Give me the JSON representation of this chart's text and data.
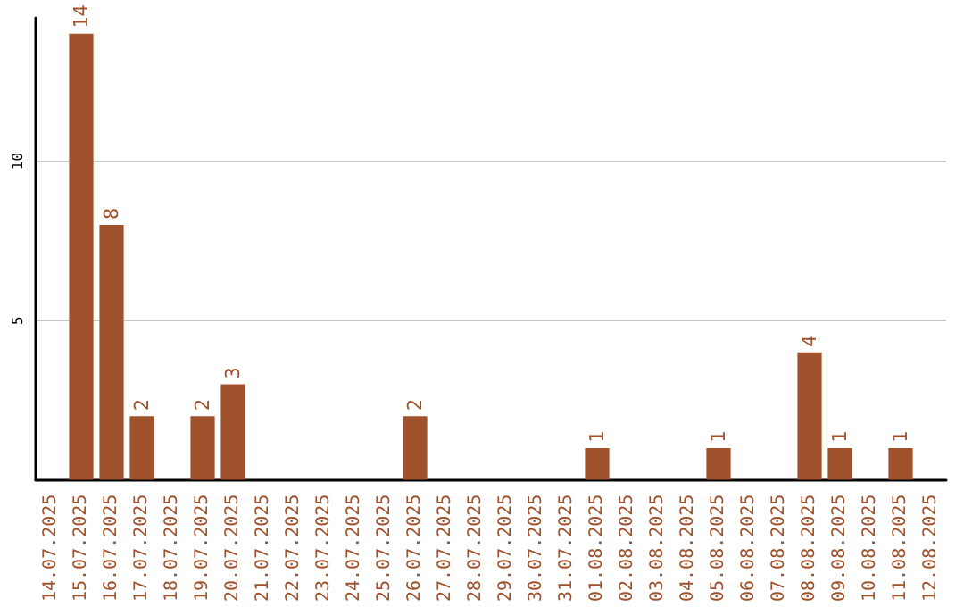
{
  "chart_data": {
    "type": "bar",
    "categories": [
      "14.07.2025",
      "15.07.2025",
      "16.07.2025",
      "17.07.2025",
      "18.07.2025",
      "19.07.2025",
      "20.07.2025",
      "21.07.2025",
      "22.07.2025",
      "23.07.2025",
      "24.07.2025",
      "25.07.2025",
      "26.07.2025",
      "27.07.2025",
      "28.07.2025",
      "29.07.2025",
      "30.07.2025",
      "31.07.2025",
      "01.08.2025",
      "02.08.2025",
      "03.08.2025",
      "04.08.2025",
      "05.08.2025",
      "06.08.2025",
      "07.08.2025",
      "08.08.2025",
      "09.08.2025",
      "10.08.2025",
      "11.08.2025",
      "12.08.2025"
    ],
    "values": [
      0,
      14,
      8,
      2,
      0,
      2,
      3,
      0,
      0,
      0,
      0,
      0,
      2,
      0,
      0,
      0,
      0,
      0,
      1,
      0,
      0,
      0,
      1,
      0,
      0,
      4,
      1,
      0,
      1,
      0
    ],
    "value_labels": [
      null,
      "14",
      "8",
      "2",
      null,
      "2",
      "3",
      null,
      null,
      null,
      null,
      null,
      "2",
      null,
      null,
      null,
      null,
      null,
      "1",
      null,
      null,
      null,
      "1",
      null,
      null,
      "4",
      "1",
      null,
      "1",
      null
    ],
    "color": "#a0522d",
    "ylim": [
      0,
      14.5
    ],
    "yticks": [
      5,
      10
    ],
    "grid": "y"
  }
}
